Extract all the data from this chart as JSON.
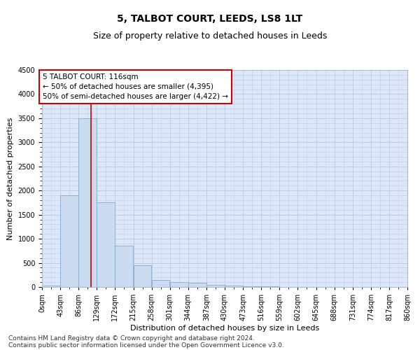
{
  "title": "5, TALBOT COURT, LEEDS, LS8 1LT",
  "subtitle": "Size of property relative to detached houses in Leeds",
  "xlabel": "Distribution of detached houses by size in Leeds",
  "ylabel": "Number of detached properties",
  "bar_values": [
    30,
    1900,
    3500,
    1750,
    850,
    450,
    150,
    100,
    80,
    50,
    30,
    15,
    8,
    5,
    3,
    2,
    1,
    1,
    0,
    0
  ],
  "bin_edges": [
    0,
    43,
    86,
    129,
    172,
    215,
    258,
    301,
    344,
    387,
    430,
    473,
    516,
    559,
    602,
    645,
    688,
    731,
    774,
    817,
    860
  ],
  "x_tick_labels": [
    "0sqm",
    "43sqm",
    "86sqm",
    "129sqm",
    "172sqm",
    "215sqm",
    "258sqm",
    "301sqm",
    "344sqm",
    "387sqm",
    "430sqm",
    "473sqm",
    "516sqm",
    "559sqm",
    "602sqm",
    "645sqm",
    "688sqm",
    "731sqm",
    "774sqm",
    "817sqm",
    "860sqm"
  ],
  "bar_color": "#ccdcf0",
  "bar_edge_color": "#88aacc",
  "red_line_x": 116,
  "annotation_title": "5 TALBOT COURT: 116sqm",
  "annotation_line1": "← 50% of detached houses are smaller (4,395)",
  "annotation_line2": "50% of semi-detached houses are larger (4,422) →",
  "annotation_box_color": "#ffffff",
  "annotation_box_edge": "#cc0000",
  "red_line_color": "#cc0000",
  "ylim": [
    0,
    4500
  ],
  "yticks": [
    0,
    500,
    1000,
    1500,
    2000,
    2500,
    3000,
    3500,
    4000,
    4500
  ],
  "grid_color": "#c0cce0",
  "background_color": "#dce8f8",
  "footer_line1": "Contains HM Land Registry data © Crown copyright and database right 2024.",
  "footer_line2": "Contains public sector information licensed under the Open Government Licence v3.0.",
  "title_fontsize": 10,
  "subtitle_fontsize": 9,
  "axis_label_fontsize": 8,
  "tick_fontsize": 7,
  "annotation_fontsize": 7.5,
  "footer_fontsize": 6.5
}
